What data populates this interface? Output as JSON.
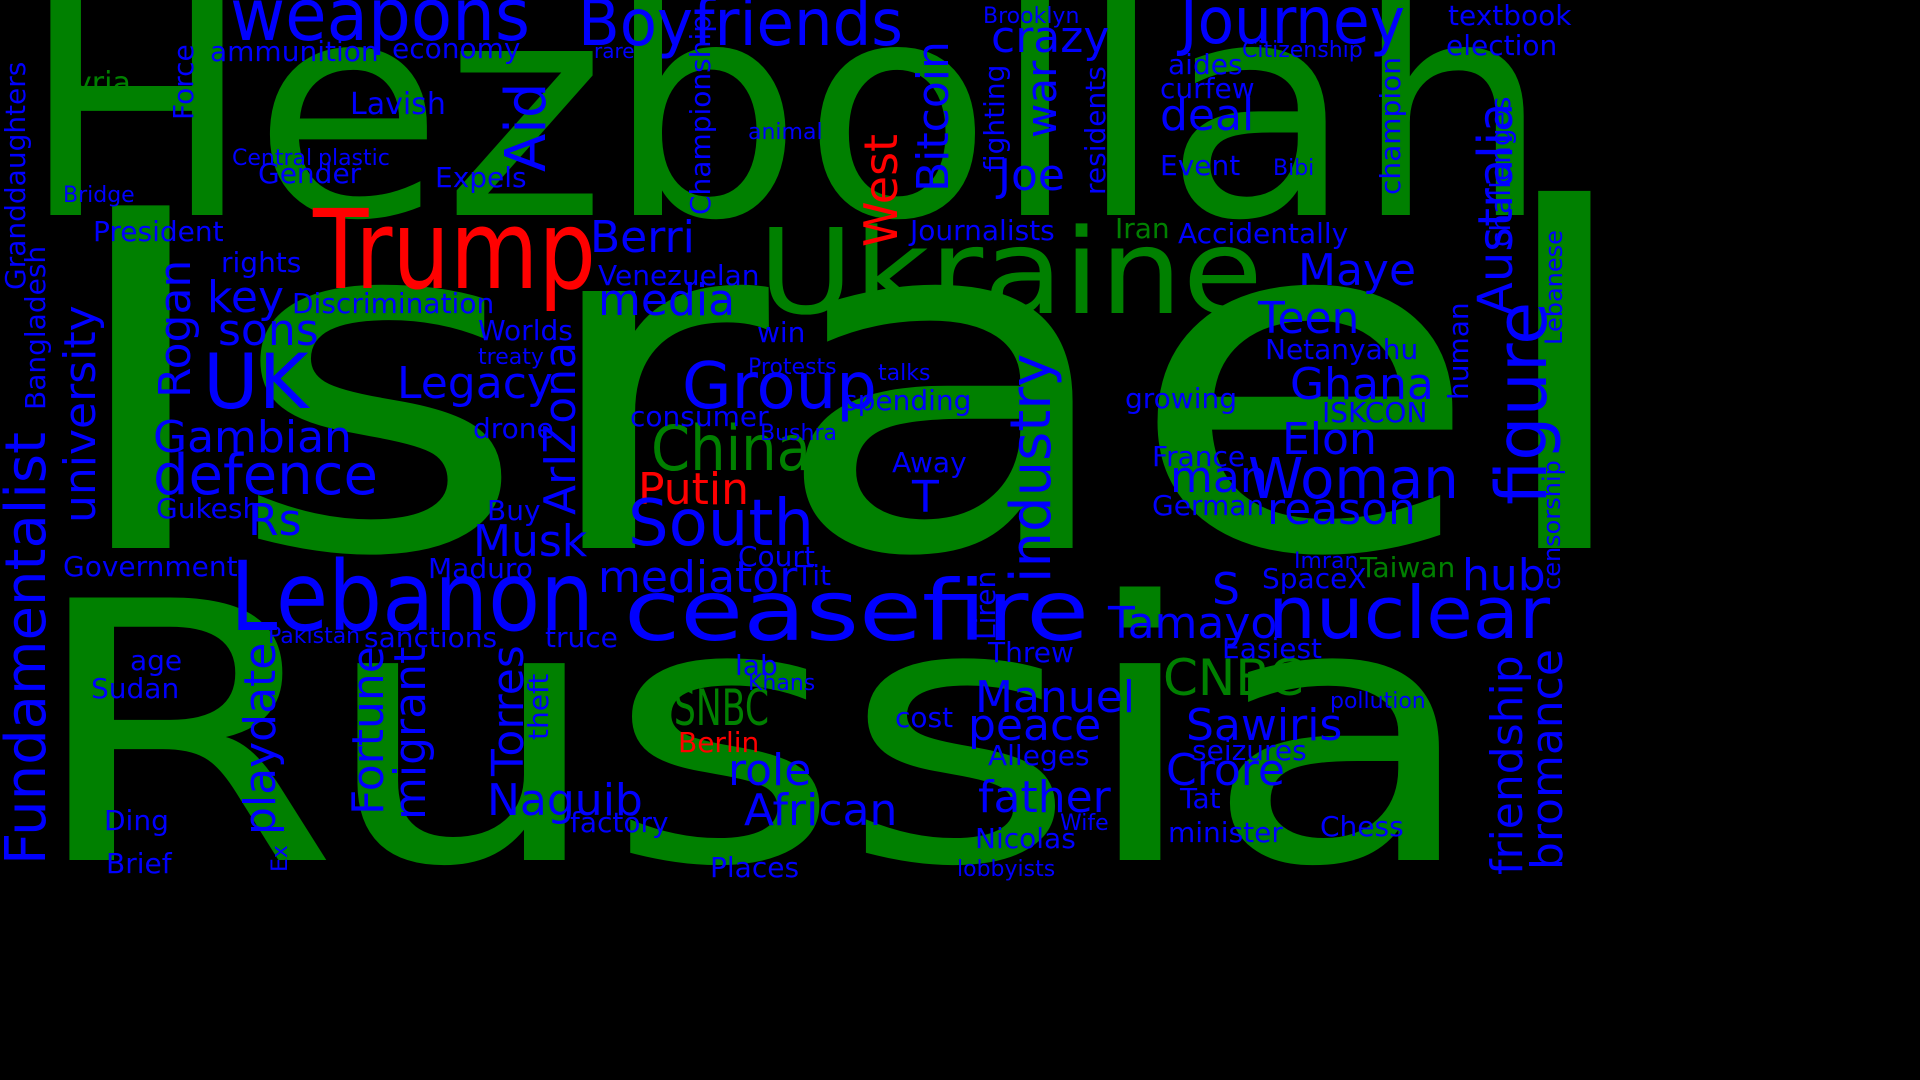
{
  "colors": {
    "background": "#000000",
    "green": "#008000",
    "blue": "#0000ff",
    "red": "#ff0000"
  },
  "words": [
    {
      "text": "Israel",
      "color": "green"
    },
    {
      "text": "Russia",
      "color": "green"
    },
    {
      "text": "Hezbollah",
      "color": "green"
    },
    {
      "text": "Ukraine",
      "color": "green"
    },
    {
      "text": "China",
      "color": "green"
    },
    {
      "text": "MSNBC",
      "color": "green"
    },
    {
      "text": "CNBC",
      "color": "green"
    },
    {
      "text": "Syria",
      "color": "green"
    },
    {
      "text": "Iran",
      "color": "green"
    },
    {
      "text": "Taiwan",
      "color": "green"
    },
    {
      "text": "Trump",
      "color": "red"
    },
    {
      "text": "Putin",
      "color": "red"
    },
    {
      "text": "West",
      "color": "red"
    },
    {
      "text": "Berlin",
      "color": "red"
    },
    {
      "text": "weapons",
      "color": "blue"
    },
    {
      "text": "Boyfriends",
      "color": "blue"
    },
    {
      "text": "Journey",
      "color": "blue"
    },
    {
      "text": "ammunition",
      "color": "blue"
    },
    {
      "text": "economy",
      "color": "blue"
    },
    {
      "text": "Brooklyn",
      "color": "blue"
    },
    {
      "text": "rare",
      "color": "blue"
    },
    {
      "text": "textbook",
      "color": "blue"
    },
    {
      "text": "election",
      "color": "blue"
    },
    {
      "text": "Citizenship",
      "color": "blue"
    },
    {
      "text": "crazy",
      "color": "blue"
    },
    {
      "text": "aides",
      "color": "blue"
    },
    {
      "text": "curfew",
      "color": "blue"
    },
    {
      "text": "deal",
      "color": "blue"
    },
    {
      "text": "Lavish",
      "color": "blue"
    },
    {
      "text": "Force",
      "color": "blue"
    },
    {
      "text": "Granddaughters",
      "color": "blue"
    },
    {
      "text": "Championship",
      "color": "blue"
    },
    {
      "text": "animal",
      "color": "blue"
    },
    {
      "text": "Aid",
      "color": "blue"
    },
    {
      "text": "Bitcoin",
      "color": "blue"
    },
    {
      "text": "war",
      "color": "blue"
    },
    {
      "text": "fighting",
      "color": "blue"
    },
    {
      "text": "residents",
      "color": "blue"
    },
    {
      "text": "champion",
      "color": "blue"
    },
    {
      "text": "challenges",
      "color": "blue"
    },
    {
      "text": "Central",
      "color": "blue"
    },
    {
      "text": "plastic",
      "color": "blue"
    },
    {
      "text": "Gender",
      "color": "blue"
    },
    {
      "text": "Expels",
      "color": "blue"
    },
    {
      "text": "Joe",
      "color": "blue"
    },
    {
      "text": "Event",
      "color": "blue"
    },
    {
      "text": "Bibi",
      "color": "blue"
    },
    {
      "text": "Bridge",
      "color": "blue"
    },
    {
      "text": "President",
      "color": "blue"
    },
    {
      "text": "Journalists",
      "color": "blue"
    },
    {
      "text": "Accidentally",
      "color": "blue"
    },
    {
      "text": "Berri",
      "color": "blue"
    },
    {
      "text": "Australia",
      "color": "blue"
    },
    {
      "text": "Lebanese",
      "color": "blue"
    },
    {
      "text": "rights",
      "color": "blue"
    },
    {
      "text": "Venezuelan",
      "color": "blue"
    },
    {
      "text": "Maye",
      "color": "blue"
    },
    {
      "text": "key",
      "color": "blue"
    },
    {
      "text": "Discrimination",
      "color": "blue"
    },
    {
      "text": "media",
      "color": "blue"
    },
    {
      "text": "figure",
      "color": "blue"
    },
    {
      "text": "Bangladesh",
      "color": "blue"
    },
    {
      "text": "Worlds",
      "color": "blue"
    },
    {
      "text": "sons",
      "color": "blue"
    },
    {
      "text": "UK",
      "color": "blue"
    },
    {
      "text": "Rogan",
      "color": "blue"
    },
    {
      "text": "treaty",
      "color": "blue"
    },
    {
      "text": "win",
      "color": "blue"
    },
    {
      "text": "Teen",
      "color": "blue"
    },
    {
      "text": "Netanyahu",
      "color": "blue"
    },
    {
      "text": "Protests",
      "color": "blue"
    },
    {
      "text": "talks",
      "color": "blue"
    },
    {
      "text": "Legacy",
      "color": "blue"
    },
    {
      "text": "Group",
      "color": "blue"
    },
    {
      "text": "Ghana",
      "color": "blue"
    },
    {
      "text": "spending",
      "color": "blue"
    },
    {
      "text": "growing",
      "color": "blue"
    },
    {
      "text": "ISKCON",
      "color": "blue"
    },
    {
      "text": "human",
      "color": "blue"
    },
    {
      "text": "Fundamentalist",
      "color": "blue"
    },
    {
      "text": "university",
      "color": "blue"
    },
    {
      "text": "consumer",
      "color": "blue"
    },
    {
      "text": "drone",
      "color": "blue"
    },
    {
      "text": "Bushra",
      "color": "blue"
    },
    {
      "text": "industry",
      "color": "blue"
    },
    {
      "text": "Elon",
      "color": "blue"
    },
    {
      "text": "Gambian",
      "color": "blue"
    },
    {
      "text": "defence",
      "color": "blue"
    },
    {
      "text": "Away",
      "color": "blue"
    },
    {
      "text": "France",
      "color": "blue"
    },
    {
      "text": "man",
      "color": "blue"
    },
    {
      "text": "Woman",
      "color": "blue"
    },
    {
      "text": "ArIZona",
      "color": "blue"
    },
    {
      "text": "censorship",
      "color": "blue"
    },
    {
      "text": "T",
      "color": "blue"
    },
    {
      "text": "reason",
      "color": "blue"
    },
    {
      "text": "Gukesh",
      "color": "blue"
    },
    {
      "text": "Buy",
      "color": "blue"
    },
    {
      "text": "German",
      "color": "blue"
    },
    {
      "text": "Rs",
      "color": "blue"
    },
    {
      "text": "South",
      "color": "blue"
    },
    {
      "text": "Musk",
      "color": "blue"
    },
    {
      "text": "Court",
      "color": "blue"
    },
    {
      "text": "Imran",
      "color": "blue"
    },
    {
      "text": "hub",
      "color": "blue"
    },
    {
      "text": "Government",
      "color": "blue"
    },
    {
      "text": "Maduro",
      "color": "blue"
    },
    {
      "text": "mediator",
      "color": "blue"
    },
    {
      "text": "Tit",
      "color": "blue"
    },
    {
      "text": "SpaceX",
      "color": "blue"
    },
    {
      "text": "S",
      "color": "blue"
    },
    {
      "text": "Lebanon",
      "color": "blue"
    },
    {
      "text": "ceasefire",
      "color": "blue"
    },
    {
      "text": "nuclear",
      "color": "blue"
    },
    {
      "text": "Liren",
      "color": "blue"
    },
    {
      "text": "Tamayo",
      "color": "blue"
    },
    {
      "text": "Pakistan",
      "color": "blue"
    },
    {
      "text": "sanctions",
      "color": "blue"
    },
    {
      "text": "truce",
      "color": "blue"
    },
    {
      "text": "Threw",
      "color": "blue"
    },
    {
      "text": "Easiest",
      "color": "blue"
    },
    {
      "text": "age",
      "color": "blue"
    },
    {
      "text": "playdate",
      "color": "blue"
    },
    {
      "text": "Fortune",
      "color": "blue"
    },
    {
      "text": "migrant",
      "color": "blue"
    },
    {
      "text": "lab",
      "color": "blue"
    },
    {
      "text": "Khans",
      "color": "blue"
    },
    {
      "text": "friendship",
      "color": "blue"
    },
    {
      "text": "bromance",
      "color": "blue"
    },
    {
      "text": "Sudan",
      "color": "blue"
    },
    {
      "text": "Torres",
      "color": "blue"
    },
    {
      "text": "theft",
      "color": "blue"
    },
    {
      "text": "Manuel",
      "color": "blue"
    },
    {
      "text": "pollution",
      "color": "blue"
    },
    {
      "text": "cost",
      "color": "blue"
    },
    {
      "text": "peace",
      "color": "blue"
    },
    {
      "text": "Sawiris",
      "color": "blue"
    },
    {
      "text": "seizures",
      "color": "blue"
    },
    {
      "text": "Alleges",
      "color": "blue"
    },
    {
      "text": "role",
      "color": "blue"
    },
    {
      "text": "Crore",
      "color": "blue"
    },
    {
      "text": "Naguib",
      "color": "blue"
    },
    {
      "text": "African",
      "color": "blue"
    },
    {
      "text": "father",
      "color": "blue"
    },
    {
      "text": "Tat",
      "color": "blue"
    },
    {
      "text": "Ding",
      "color": "blue"
    },
    {
      "text": "factory",
      "color": "blue"
    },
    {
      "text": "Wife",
      "color": "blue"
    },
    {
      "text": "Chess",
      "color": "blue"
    },
    {
      "text": "Nicolas",
      "color": "blue"
    },
    {
      "text": "minister",
      "color": "blue"
    },
    {
      "text": "Brief",
      "color": "blue"
    },
    {
      "text": "Ex",
      "color": "blue"
    },
    {
      "text": "Places",
      "color": "blue"
    },
    {
      "text": "lobbyists",
      "color": "blue"
    }
  ]
}
